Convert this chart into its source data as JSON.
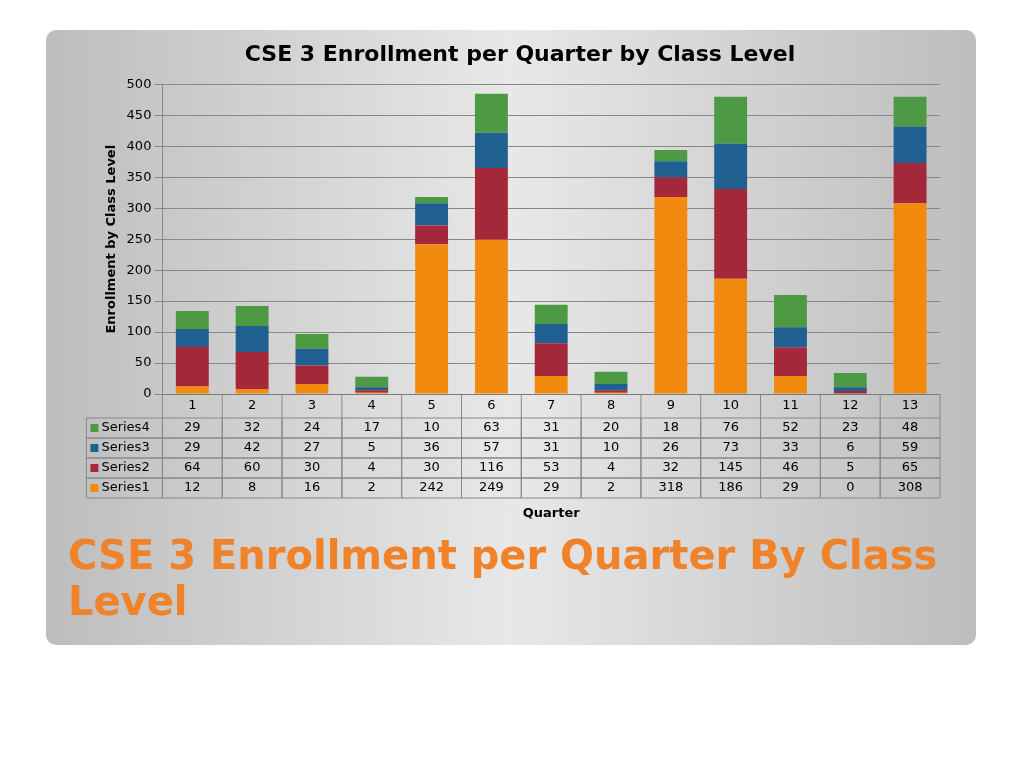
{
  "chart_data": {
    "type": "bar",
    "stacked": true,
    "title": "CSE 3 Enrollment per Quarter by Class Level",
    "ylabel": "Enrollment by Class Level",
    "categories": [
      "1",
      "2",
      "3",
      "4",
      "5",
      "6",
      "7",
      "8",
      "9",
      "10",
      "11",
      "12",
      "13"
    ],
    "series": [
      {
        "name": "Series1",
        "color": "#f28a10",
        "values": [
          12,
          8,
          16,
          2,
          242,
          249,
          29,
          2,
          318,
          186,
          29,
          0,
          308
        ]
      },
      {
        "name": "Series2",
        "color": "#a3283a",
        "values": [
          64,
          60,
          30,
          4,
          30,
          116,
          53,
          4,
          32,
          145,
          46,
          5,
          65
        ]
      },
      {
        "name": "Series3",
        "color": "#1f6091",
        "values": [
          29,
          42,
          27,
          5,
          36,
          57,
          31,
          10,
          26,
          73,
          33,
          6,
          59
        ]
      },
      {
        "name": "Series4",
        "color": "#4e9a44",
        "values": [
          29,
          32,
          24,
          17,
          10,
          63,
          31,
          20,
          18,
          76,
          52,
          23,
          48
        ]
      }
    ],
    "ylim": [
      0,
      500
    ],
    "yticks": [
      0,
      50,
      100,
      150,
      200,
      250,
      300,
      350,
      400,
      450,
      500
    ],
    "grid": "y",
    "legend": "bottom",
    "data_labels": true,
    "annotations": [
      "Quarter",
      "CSE 3 Enrollment per Quarter By Class Level"
    ]
  }
}
